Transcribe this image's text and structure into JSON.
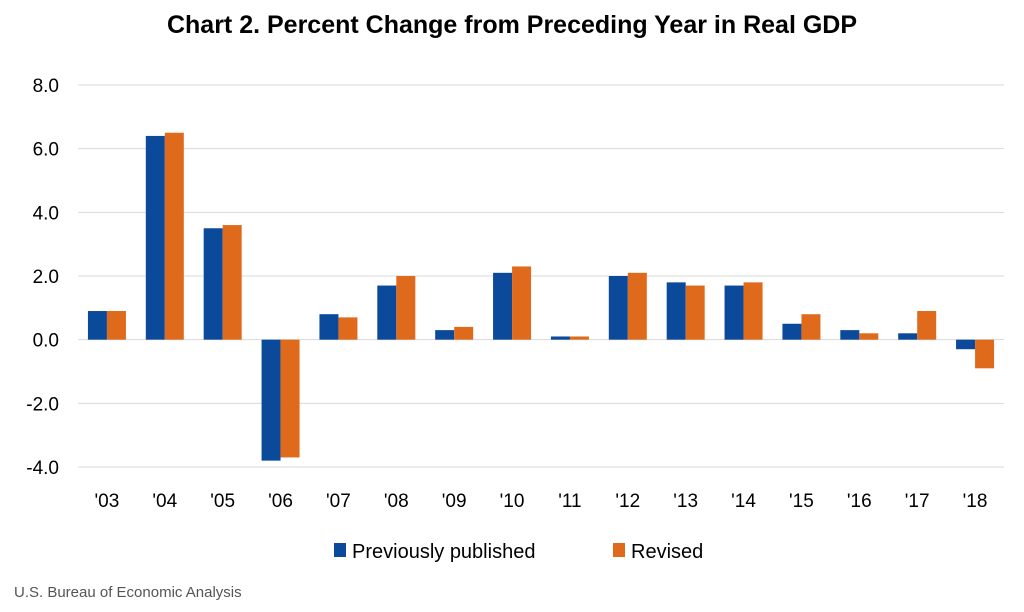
{
  "chart_data": {
    "type": "bar",
    "title": "Chart 2. Percent Change from Preceding Year in Real GDP",
    "xlabel": "",
    "ylabel": "",
    "categories": [
      "'03",
      "'04",
      "'05",
      "'06",
      "'07",
      "'08",
      "'09",
      "'10",
      "'11",
      "'12",
      "'13",
      "'14",
      "'15",
      "'16",
      "'17",
      "'18"
    ],
    "series": [
      {
        "name": "Previously published",
        "color": "#0b4a9a",
        "values": [
          0.9,
          6.4,
          3.5,
          -3.8,
          0.8,
          1.7,
          0.3,
          2.1,
          0.1,
          2.0,
          1.8,
          1.7,
          0.5,
          0.3,
          0.2,
          -0.3
        ]
      },
      {
        "name": "Revised",
        "color": "#e06a1c",
        "values": [
          0.9,
          6.5,
          3.6,
          -3.7,
          0.7,
          2.0,
          0.4,
          2.3,
          0.1,
          2.1,
          1.7,
          1.8,
          0.8,
          0.2,
          0.9,
          -0.9
        ]
      }
    ],
    "ylim": [
      -4.0,
      8.0
    ],
    "yticks": [
      "8.0",
      "6.0",
      "4.0",
      "2.0",
      "0.0",
      "-2.0",
      "-4.0"
    ],
    "grid": true,
    "legend_position": "bottom"
  },
  "source": "U.S. Bureau of Economic Analysis"
}
